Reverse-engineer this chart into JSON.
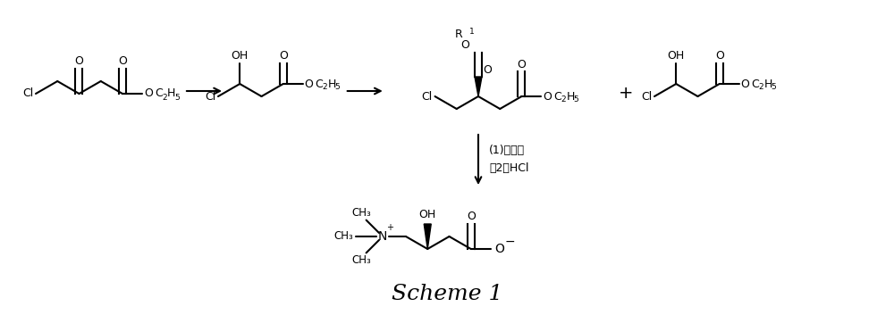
{
  "title": "Scheme 1",
  "title_fontsize": 18,
  "background_color": "#ffffff",
  "figsize": [
    10.0,
    3.53
  ],
  "dpi": 100,
  "reaction_label1": "(1)三甲胺",
  "reaction_label2": "（2）HCl"
}
